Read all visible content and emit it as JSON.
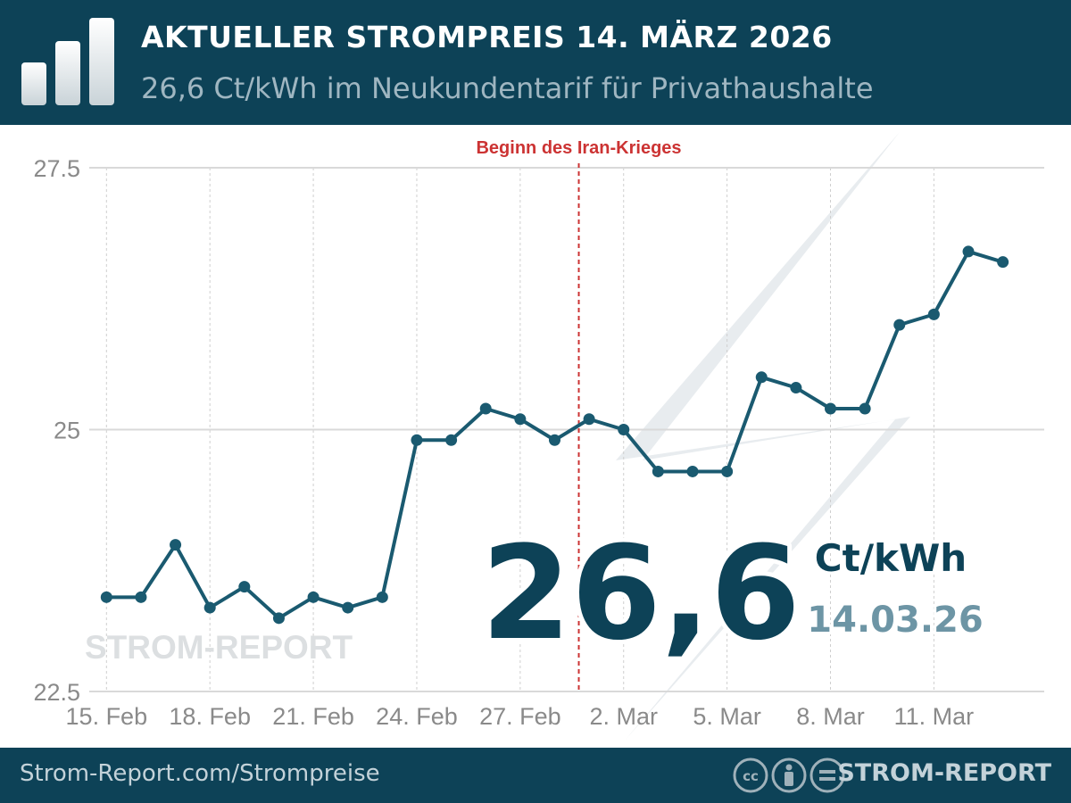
{
  "header": {
    "title": "AKTUELLER STROMPREIS 14. MÄRZ 2026",
    "subtitle": "26,6 Ct/kWh im Neukundentarif für Privathaushalte",
    "logo_icon": "bar-chart-icon"
  },
  "colors": {
    "header_bg": "#0d4257",
    "line": "#1a5a70",
    "annotation": "#cc3333",
    "big_value": "#0d4257",
    "date": "#6d95a5",
    "watermark": "#dcdfe1",
    "bolt": "#e6eaed"
  },
  "highlight": {
    "value": "26,6",
    "unit": "Ct/kWh",
    "date": "14.03.26"
  },
  "watermark_text": "STROM-REPORT",
  "annotation": {
    "label": "Beginn des Iran-Krieges",
    "x_value": 13.7
  },
  "chart_data": {
    "type": "line",
    "title": "",
    "xlabel": "",
    "ylabel": "",
    "ylim": [
      22.5,
      27.5
    ],
    "x_range": [
      -0.5,
      27.2
    ],
    "yticks": [
      22.5,
      25,
      27.5
    ],
    "ytick_labels": [
      "22.5",
      "25",
      "27.5"
    ],
    "xticks": [
      0,
      3,
      6,
      9,
      12,
      15,
      18,
      21,
      24
    ],
    "xtick_labels": [
      "15. Feb",
      "18. Feb",
      "21. Feb",
      "24. Feb",
      "27. Feb",
      "2. Mar",
      "5. Mar",
      "8. Mar",
      "11. Mar"
    ],
    "grid": true,
    "dates": [
      "15. Feb",
      "16. Feb",
      "17. Feb",
      "18. Feb",
      "19. Feb",
      "20. Feb",
      "21. Feb",
      "22. Feb",
      "23. Feb",
      "24. Feb",
      "25. Feb",
      "26. Feb",
      "27. Feb",
      "28. Feb",
      "1. Mar",
      "2. Mar",
      "3. Mar",
      "4. Mar",
      "5. Mar",
      "6. Mar",
      "7. Mar",
      "8. Mar",
      "9. Mar",
      "10. Mar",
      "11. Mar",
      "12. Mar",
      "13. Mar"
    ],
    "series": [
      {
        "values": [
          23.4,
          23.4,
          23.9,
          23.3,
          23.5,
          23.2,
          23.4,
          23.3,
          23.4,
          24.9,
          24.9,
          25.2,
          25.1,
          24.9,
          25.1,
          25.0,
          24.6,
          24.6,
          24.6,
          25.5,
          25.4,
          25.2,
          25.2,
          26.0,
          26.1,
          26.7,
          26.6
        ]
      }
    ]
  },
  "footer": {
    "url": "Strom-Report.com/Strompreise",
    "license_icons": [
      "cc-icon",
      "attribution-icon",
      "no-derivatives-icon"
    ],
    "brand": "STROM-REPORT"
  }
}
